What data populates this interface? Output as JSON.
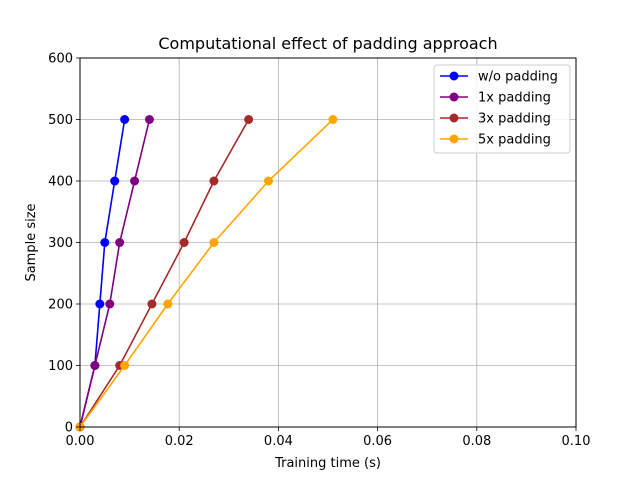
{
  "chart_data": {
    "type": "line",
    "title": "Computational effect of padding approach",
    "xlabel": "Training time (s)",
    "ylabel": "Sample size",
    "xlim": [
      0.0,
      0.1
    ],
    "ylim": [
      0,
      600
    ],
    "xticks": [
      0.0,
      0.02,
      0.04,
      0.06,
      0.08,
      0.1
    ],
    "xtick_labels": [
      "0.00",
      "0.02",
      "0.04",
      "0.06",
      "0.08",
      "0.10"
    ],
    "yticks": [
      0,
      100,
      200,
      300,
      400,
      500,
      600
    ],
    "ytick_labels": [
      "0",
      "100",
      "200",
      "300",
      "400",
      "500",
      "600"
    ],
    "grid": true,
    "legend_position": "top-right",
    "series": [
      {
        "name": "w/o padding",
        "color": "#0000ff",
        "x": [
          0.0,
          0.003,
          0.004,
          0.005,
          0.007,
          0.009
        ],
        "y": [
          0,
          100,
          200,
          300,
          400,
          500
        ]
      },
      {
        "name": "1x padding",
        "color": "#800080",
        "x": [
          0.0,
          0.003,
          0.006,
          0.008,
          0.011,
          0.014
        ],
        "y": [
          0,
          100,
          200,
          300,
          400,
          500
        ]
      },
      {
        "name": "3x padding",
        "color": "#a52a2a",
        "x": [
          0.0,
          0.008,
          0.0145,
          0.021,
          0.027,
          0.034
        ],
        "y": [
          0,
          100,
          200,
          300,
          400,
          500
        ]
      },
      {
        "name": "5x padding",
        "color": "#ffa500",
        "x": [
          0.0,
          0.009,
          0.0177,
          0.027,
          0.038,
          0.051
        ],
        "y": [
          0,
          100,
          200,
          300,
          400,
          500
        ]
      }
    ]
  }
}
